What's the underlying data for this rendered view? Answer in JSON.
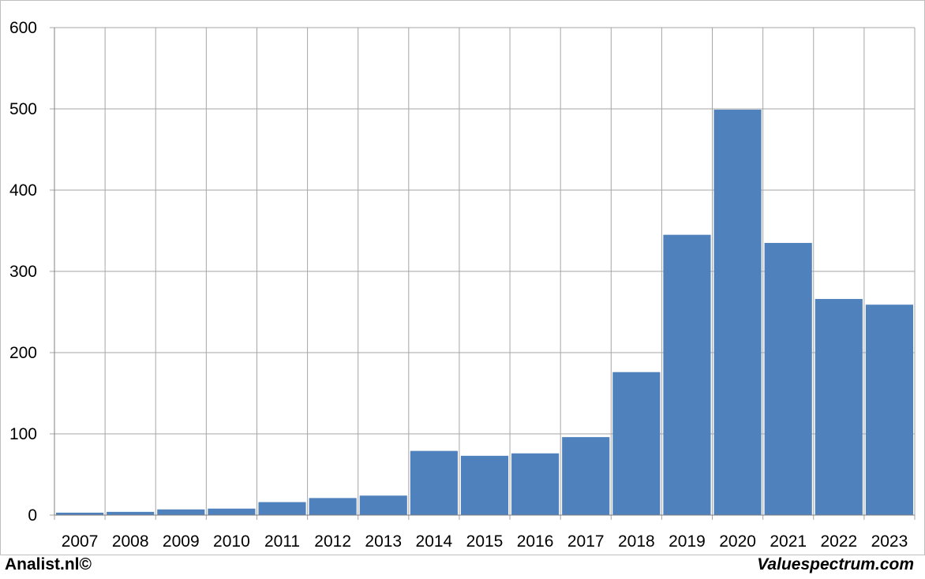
{
  "chart_data": {
    "type": "bar",
    "categories": [
      "2007",
      "2008",
      "2009",
      "2010",
      "2011",
      "2012",
      "2013",
      "2014",
      "2015",
      "2016",
      "2017",
      "2018",
      "2019",
      "2020",
      "2021",
      "2022",
      "2023"
    ],
    "values": [
      3,
      4,
      7,
      8,
      16,
      21,
      24,
      79,
      73,
      76,
      96,
      176,
      345,
      499,
      335,
      266,
      259
    ],
    "title": "",
    "xlabel": "",
    "ylabel": "",
    "ylim": [
      0,
      600
    ],
    "yticks": [
      0,
      100,
      200,
      300,
      400,
      500,
      600
    ],
    "grid": true,
    "legend": "none",
    "bar_color": "#4f81bd"
  },
  "footer": {
    "left_text": "Analist.nl©",
    "right_text": "Valuespectrum.com"
  }
}
